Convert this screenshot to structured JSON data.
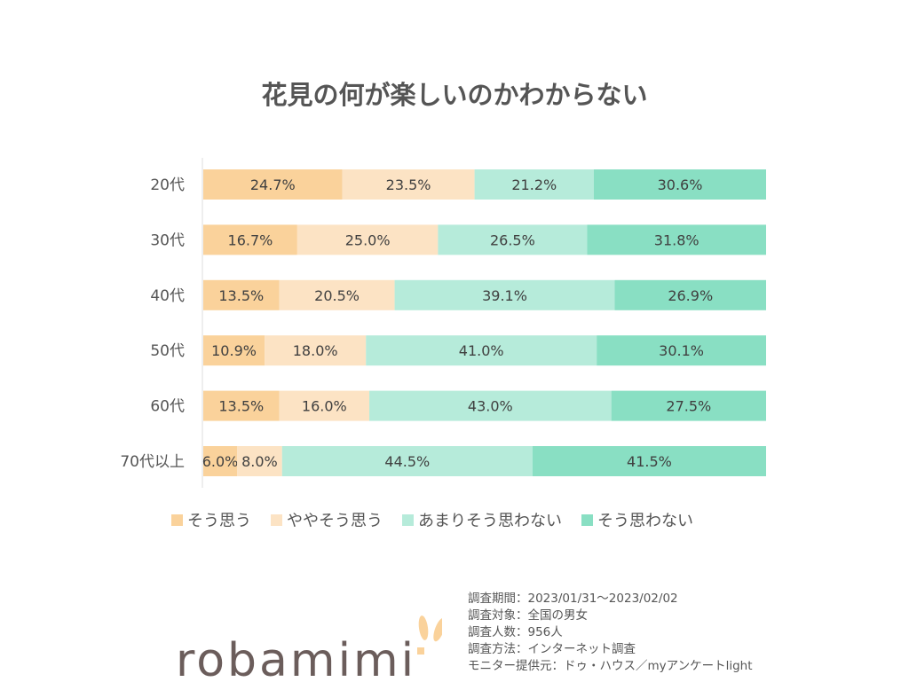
{
  "chart_data": {
    "type": "bar",
    "orientation": "horizontal-stacked-100",
    "title": "花見の何が楽しいのかわからない",
    "categories": [
      "20代",
      "30代",
      "40代",
      "50代",
      "60代",
      "70代以上"
    ],
    "series": [
      {
        "name": "そう思う",
        "color": "#FAD29B",
        "values": [
          24.7,
          16.7,
          13.5,
          10.9,
          13.5,
          6.0
        ],
        "labels": [
          "24.7%",
          "16.7%",
          "13.5%",
          "10.9%",
          "13.5%",
          "6.0%"
        ]
      },
      {
        "name": "ややそう思う",
        "color": "#FCE3C4",
        "values": [
          23.5,
          25.0,
          20.5,
          18.0,
          16.0,
          8.0
        ],
        "labels": [
          "23.5%",
          "25.0%",
          "20.5%",
          "18.0%",
          "16.0%",
          "8.0%"
        ]
      },
      {
        "name": "あまりそう思わない",
        "color": "#B6EBDA",
        "values": [
          21.2,
          26.5,
          39.1,
          41.0,
          43.0,
          44.5
        ],
        "labels": [
          "21.2%",
          "26.5%",
          "39.1%",
          "41.0%",
          "43.0%",
          "44.5%"
        ]
      },
      {
        "name": "そう思わない",
        "color": "#89DFC3",
        "values": [
          30.6,
          31.8,
          26.9,
          30.1,
          27.5,
          41.5
        ],
        "labels": [
          "30.6%",
          "31.8%",
          "26.9%",
          "30.1%",
          "27.5%",
          "41.5%"
        ]
      }
    ],
    "legend_position": "bottom",
    "grid": false
  },
  "notes": [
    "調査期間：2023/01/31～2023/02/02",
    "調査対象：全国の男女",
    "調査人数：956人",
    "調査方法：インターネット調査",
    "モニター提供元：ドゥ・ハウス／myアンケートlight"
  ],
  "logo": {
    "text": "robamimi",
    "text_color": "#6B5D5B",
    "ear_color": "#FAD29B"
  }
}
